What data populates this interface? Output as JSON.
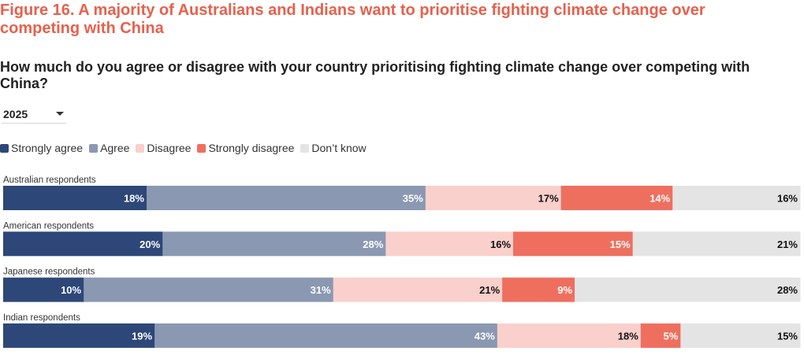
{
  "figure_title": "Figure 16. A majority of Australians and Indians want to prioritise fighting climate change over competing with China",
  "question": "How much do you agree or disagree with your country prioritising fighting climate change over competing with China?",
  "year_select": {
    "value": "2025"
  },
  "colors": {
    "strongly_agree": "#2d4778",
    "agree": "#8a98b2",
    "disagree": "#f9d0cb",
    "strongly_disagree": "#ef6f5f",
    "dont_know": "#e4e4e4"
  },
  "chart_data": {
    "type": "bar",
    "orientation": "horizontal",
    "stacked": true,
    "normalized": true,
    "title": "Figure 16. A majority of Australians and Indians want to prioritise fighting climate change over competing with China",
    "subtitle": "How much do you agree or disagree with your country prioritising fighting climate change over competing with China?",
    "categories": [
      "Australian respondents",
      "American respondents",
      "Japanese respondents",
      "Indian respondents"
    ],
    "series": [
      {
        "name": "Strongly agree",
        "color": "#2d4778",
        "values": [
          18,
          20,
          10,
          19
        ]
      },
      {
        "name": "Agree",
        "color": "#8a98b2",
        "values": [
          35,
          28,
          31,
          43
        ]
      },
      {
        "name": "Disagree",
        "color": "#f9d0cb",
        "values": [
          17,
          16,
          21,
          18
        ]
      },
      {
        "name": "Strongly disagree",
        "color": "#ef6f5f",
        "values": [
          14,
          15,
          9,
          5
        ]
      },
      {
        "name": "Don’t know",
        "color": "#e4e4e4",
        "values": [
          16,
          21,
          28,
          15
        ]
      }
    ],
    "value_suffix": "%",
    "legend_position": "top-left",
    "xlim": [
      0,
      100
    ]
  }
}
